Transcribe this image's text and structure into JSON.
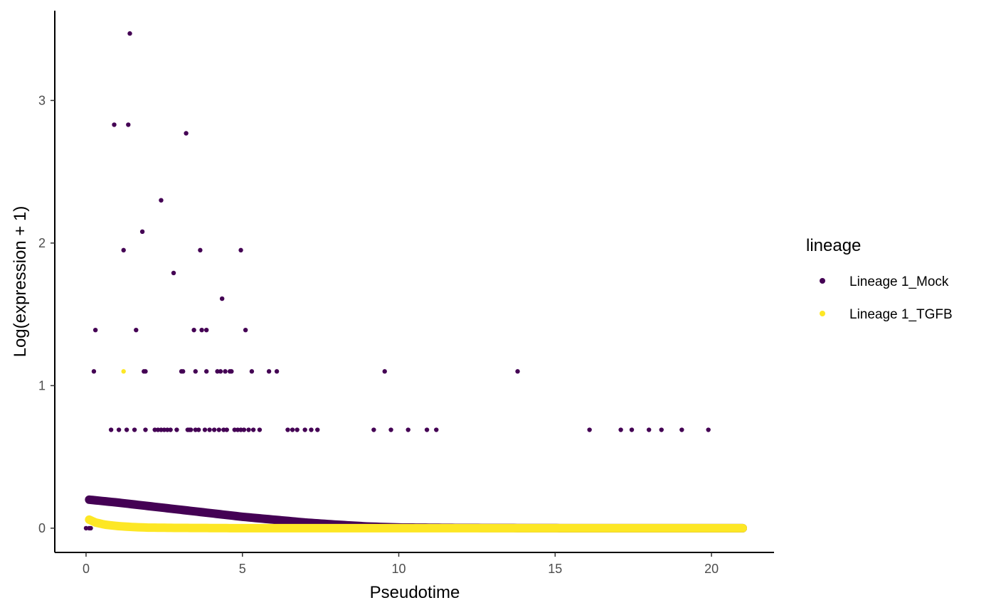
{
  "chart_data": {
    "type": "scatter",
    "xlabel": "Pseudotime",
    "ylabel": "Log(expression + 1)",
    "xlim": [
      -1.0,
      22.0
    ],
    "ylim": [
      -0.17,
      3.63
    ],
    "x_ticks": [
      0,
      5,
      10,
      15,
      20
    ],
    "y_ticks": [
      0,
      1,
      2,
      3
    ],
    "grid": false,
    "legend": {
      "title": "lineage",
      "placement": "right",
      "entries": [
        "Lineage 1_Mock",
        "Lineage 1_TGFB"
      ]
    },
    "series": [
      {
        "name": "Lineage 1_Mock",
        "color": "#440154",
        "points": [
          [
            0.25,
            1.1
          ],
          [
            0.3,
            1.39
          ],
          [
            0.8,
            0.69
          ],
          [
            0.9,
            2.83
          ],
          [
            1.05,
            0.69
          ],
          [
            1.2,
            1.95
          ],
          [
            1.3,
            0.69
          ],
          [
            1.35,
            2.83
          ],
          [
            1.4,
            3.47
          ],
          [
            1.55,
            0.69
          ],
          [
            1.6,
            1.39
          ],
          [
            1.8,
            2.08
          ],
          [
            1.85,
            1.1
          ],
          [
            1.9,
            1.1
          ],
          [
            1.9,
            0.69
          ],
          [
            2.2,
            0.69
          ],
          [
            2.3,
            0.69
          ],
          [
            2.4,
            2.3
          ],
          [
            2.4,
            0.69
          ],
          [
            2.5,
            0.69
          ],
          [
            2.6,
            0.69
          ],
          [
            2.7,
            0.69
          ],
          [
            2.8,
            1.79
          ],
          [
            2.9,
            0.69
          ],
          [
            3.05,
            1.1
          ],
          [
            3.1,
            1.1
          ],
          [
            3.2,
            2.77
          ],
          [
            3.25,
            0.69
          ],
          [
            3.3,
            0.69
          ],
          [
            3.35,
            0.69
          ],
          [
            3.45,
            1.39
          ],
          [
            3.5,
            1.1
          ],
          [
            3.5,
            0.69
          ],
          [
            3.6,
            0.69
          ],
          [
            3.65,
            1.95
          ],
          [
            3.7,
            1.39
          ],
          [
            3.8,
            0.69
          ],
          [
            3.85,
            1.39
          ],
          [
            3.85,
            1.1
          ],
          [
            3.95,
            0.69
          ],
          [
            4.1,
            0.69
          ],
          [
            4.2,
            1.1
          ],
          [
            4.25,
            0.69
          ],
          [
            4.3,
            1.1
          ],
          [
            4.35,
            1.61
          ],
          [
            4.4,
            0.69
          ],
          [
            4.45,
            1.1
          ],
          [
            4.5,
            0.69
          ],
          [
            4.6,
            1.1
          ],
          [
            4.65,
            1.1
          ],
          [
            4.75,
            0.69
          ],
          [
            4.85,
            0.69
          ],
          [
            4.95,
            1.95
          ],
          [
            4.95,
            0.69
          ],
          [
            5.05,
            0.69
          ],
          [
            5.1,
            1.39
          ],
          [
            5.2,
            0.69
          ],
          [
            5.3,
            1.1
          ],
          [
            5.35,
            0.69
          ],
          [
            5.55,
            0.69
          ],
          [
            5.85,
            1.1
          ],
          [
            6.1,
            1.1
          ],
          [
            6.45,
            0.69
          ],
          [
            6.6,
            0.69
          ],
          [
            6.75,
            0.69
          ],
          [
            7.0,
            0.69
          ],
          [
            7.2,
            0.69
          ],
          [
            7.4,
            0.69
          ],
          [
            9.2,
            0.69
          ],
          [
            9.55,
            1.1
          ],
          [
            9.75,
            0.69
          ],
          [
            10.3,
            0.69
          ],
          [
            10.9,
            0.69
          ],
          [
            11.2,
            0.69
          ],
          [
            13.8,
            1.1
          ],
          [
            16.1,
            0.69
          ],
          [
            17.1,
            0.69
          ],
          [
            17.45,
            0.69
          ],
          [
            18.0,
            0.69
          ],
          [
            18.4,
            0.69
          ],
          [
            19.05,
            0.69
          ],
          [
            19.9,
            0.69
          ],
          [
            0.0,
            0.0
          ],
          [
            0.1,
            0.0
          ],
          [
            0.15,
            0.0
          ]
        ]
      },
      {
        "name": "Lineage 1_TGFB",
        "color": "#FDE725",
        "points": [
          [
            1.2,
            1.1
          ]
        ]
      }
    ],
    "smooth_curves": [
      {
        "name": "Lineage 1_Mock",
        "color": "#440154",
        "x": [
          0.1,
          1,
          2,
          3,
          4,
          5,
          6,
          7,
          8,
          9,
          10,
          12,
          14,
          16,
          18,
          21
        ],
        "y": [
          0.2,
          0.18,
          0.155,
          0.13,
          0.105,
          0.08,
          0.06,
          0.04,
          0.025,
          0.012,
          0.005,
          0.002,
          0.001,
          0.0,
          0.0,
          0.0
        ]
      },
      {
        "name": "Lineage 1_TGFB",
        "color": "#FDE725",
        "x": [
          0.1,
          0.3,
          0.6,
          1.0,
          1.5,
          2.0,
          3.0,
          5.0,
          10.0,
          21.0
        ],
        "y": [
          0.06,
          0.04,
          0.025,
          0.015,
          0.008,
          0.004,
          0.002,
          0.0,
          0.0,
          0.0
        ]
      }
    ]
  }
}
